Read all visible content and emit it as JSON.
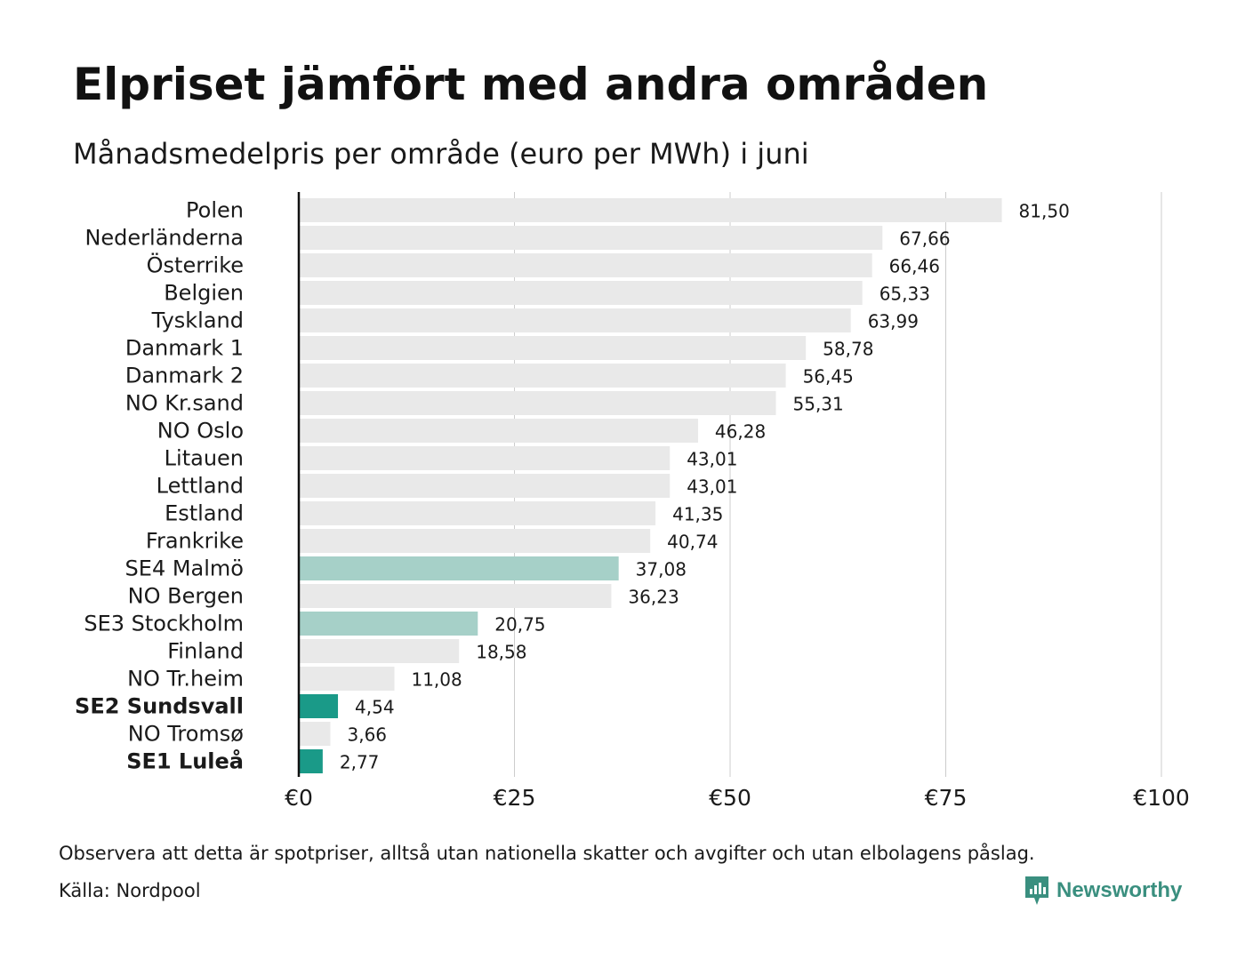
{
  "title": "Elpriset jämfört med andra områden",
  "subtitle": "Månadsmedelpris per område (euro per MWh) i juni",
  "note": "Observera att detta är spotpriser, alltså utan nationella skatter och avgifter och utan elbolagens påslag.",
  "source": "Källa: Nordpool",
  "brand": {
    "name": "Newsworthy",
    "icon": "newsworthy-logo-icon"
  },
  "colors": {
    "default_bar": "#e9e9e9",
    "highlight_light": "#a6d0c8",
    "highlight_dark": "#1a9a88",
    "axis": "#111111",
    "grid": "#cccccc",
    "brand": "#3a8f7f"
  },
  "chart_data": {
    "type": "bar",
    "orientation": "horizontal",
    "xlim": [
      0,
      100
    ],
    "xticks": [
      0,
      25,
      50,
      75,
      100
    ],
    "xtick_labels": [
      "€0",
      "€25",
      "€50",
      "€75",
      "€100"
    ],
    "grid": true,
    "categories": [
      "Polen",
      "Nederländerna",
      "Österrike",
      "Belgien",
      "Tyskland",
      "Danmark  1",
      "Danmark  2",
      "NO Kr.sand",
      "NO Oslo",
      "Litauen",
      "Lettland",
      "Estland",
      "Frankrike",
      "SE4  Malmö",
      "NO Bergen",
      "SE3  Stockholm",
      "Finland",
      "NO Tr.heim",
      "SE2 Sundsvall",
      "NO Tromsø",
      "SE1 Luleå"
    ],
    "values": [
      81.5,
      67.66,
      66.46,
      65.33,
      63.99,
      58.78,
      56.45,
      55.31,
      46.28,
      43.01,
      43.01,
      41.35,
      40.74,
      37.08,
      36.23,
      20.75,
      18.58,
      11.08,
      4.54,
      3.66,
      2.77
    ],
    "value_labels": [
      "81,50",
      "67,66",
      "66,46",
      "65,33",
      "63,99",
      "58,78",
      "56,45",
      "55,31",
      "46,28",
      "43,01",
      "43,01",
      "41,35",
      "40,74",
      "37,08",
      "36,23",
      "20,75",
      "18,58",
      "11,08",
      "4,54",
      "3,66",
      "2,77"
    ],
    "highlight": [
      "none",
      "none",
      "none",
      "none",
      "none",
      "none",
      "none",
      "none",
      "none",
      "none",
      "none",
      "none",
      "none",
      "light",
      "none",
      "light",
      "none",
      "none",
      "dark",
      "none",
      "dark"
    ],
    "bold_labels": [
      false,
      false,
      false,
      false,
      false,
      false,
      false,
      false,
      false,
      false,
      false,
      false,
      false,
      false,
      false,
      false,
      false,
      false,
      true,
      false,
      true
    ]
  }
}
